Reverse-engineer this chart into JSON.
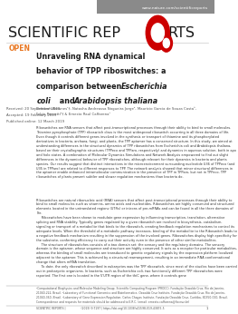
{
  "bg_color": "#ffffff",
  "header_bar_color": "#8a8a8a",
  "header_text": "www.nature.com/scientificreports",
  "header_text_color": "#ffffff",
  "journal_color": "#1a1a1a",
  "open_label": "OPEN",
  "open_color": "#e87722",
  "title_color": "#1a1a1a",
  "received_text": "Received: 20 September 2018",
  "accepted_text": "Accepted: 19 February 2019",
  "published_text": "Published online: 12 March 2019",
  "meta_color": "#555555",
  "authors": "Deborah Antunes¹†, Natasha Andreassa Nogueira Jorge², Mauricio Garcia de Souza Costa³,\nFabio Passetti²† & Ernesto Raul Caffarena¹",
  "abstract_text": "Riboswitches are RNA sensors that affect post-transcriptional processes through their ability to bind to small molecules. Thiamine pyrophosphate (TPP) riboswitch class is the most widespread riboswitch occurring in all three domains of life. Even though it controls different genes involved in the synthesis or transport of thiamine and its phosphorylated derivatives in bacteria, archaea, fungi, and plants, the TPP aptamer has a conserved structure. In this study, we aimed at understanding differences in the structural dynamics of TPP riboswitches from Escherichia coli and Arabidopsis thaliana, based on their crystallographic structures (TPPeco and TPParo, respectively) and dynamics in aqueous solution, both in apo and holo states. A combination of Molecular Dynamics Simulations and Network Analysis empowered to find out slight differences in the dynamical behavior of TPP riboswitches, although relevant for their dynamics in bacteria and plants species. Our results suggest that distinct interactions in the microenvironment surrounding nucleotide U36 of TPPeco (and U35 in TPParo) are related to different responses to TPP. The network analysis showed that minor structural differences in the aptamer enable enhanced intramolecular communication in the presence of TPP in TPParo, but not in TPPeco. TPP riboswitches of plants present subtler and slower regulation mechanisms than bacteria do.",
  "body_text": "Riboswitches are natural ribonucleic acid (RNA) sensors that affect post-transcriptional processes through their ability to bind to small molecules such as vitamins, amino acids and nucleotides. Riboswitches are highly conserved and structured elements located in the untranslated regions (UTRs) or introns of pre-mRNAs and can be found in all the three domains of life.\n     Riboswitches have been shown to modulate gene expression by influencing transcription, translation, alternative splicing and RNA stability. Typically genes regulated by a given riboswitch are involved in biosynthesis, catabolism, signaling or transport of a metabolite that binds to the riboswitch, creating feedback regulation mechanisms to control its adequate levels. When the threshold of a metabolic pathway increases, binding of the metabolite to the Riboswitch leads to a negative feedback mechanism resulting in the suppression of the involved genes. Riboswitches display high specificity for the substrate, conferring efficiency to carry out their activity even in the presence of other similar metabolites.\n     The structure of riboswitches consists of a two domain set: the sensory and the regulatory domains. The sensory domain is the aptamer, whose sequence and structure are highly conserved. It acts as a receptor for particular metabolites, whereas the binding of small molecules are transduced to genetic regulatory signals by the expression platform localized adjacent to the aptamer. This is achieved by a structural rearrangement, resulting in an immediate RNA conformational change that alters mRNA translation.\n     To date, the only riboswitch described in eukaryotes was the TPP riboswitch, since most of the studies have been carried out in prokaryotic organisms. In bacteria, such as Escherichia coli, two functionally different TPP riboswitches were reported. The first one is located in the 5'UTR region of the thiC gene, where it controls gene",
  "footer_text": "¹Computational Biophysics and Molecular Modeling Group, Scientific Computing Program (PROCC), Fundação Oswaldo Cruz, Rio de Janeiro, 21040-222, Brasil. ²Laboratory of Functional Genomics and Bioinformatics, Oswaldo Cruz Institute, Fundação Oswaldo Cruz, Rio de Janeiro, 21040-360, Brasil. ³Laboratory of Gene Expression Regulation, Carlos Chagas Institute, Fundação Oswaldo Cruz, Curitiba, 81350-010, Brasil. Correspondence and requests for materials should be addressed to E.R.C. (email: ernesto.caffarena@fiocruz.br)",
  "page_footer": "SCIENTIFIC REPORTS |                 (2019) 9:7197 | https://doi.org/10.1038/s41598-019-43875-5",
  "page_number": "1",
  "gear_red": "#cc0000",
  "divider_color": "#cccccc",
  "footer_divider_color": "#999999",
  "text_color": "#333333"
}
